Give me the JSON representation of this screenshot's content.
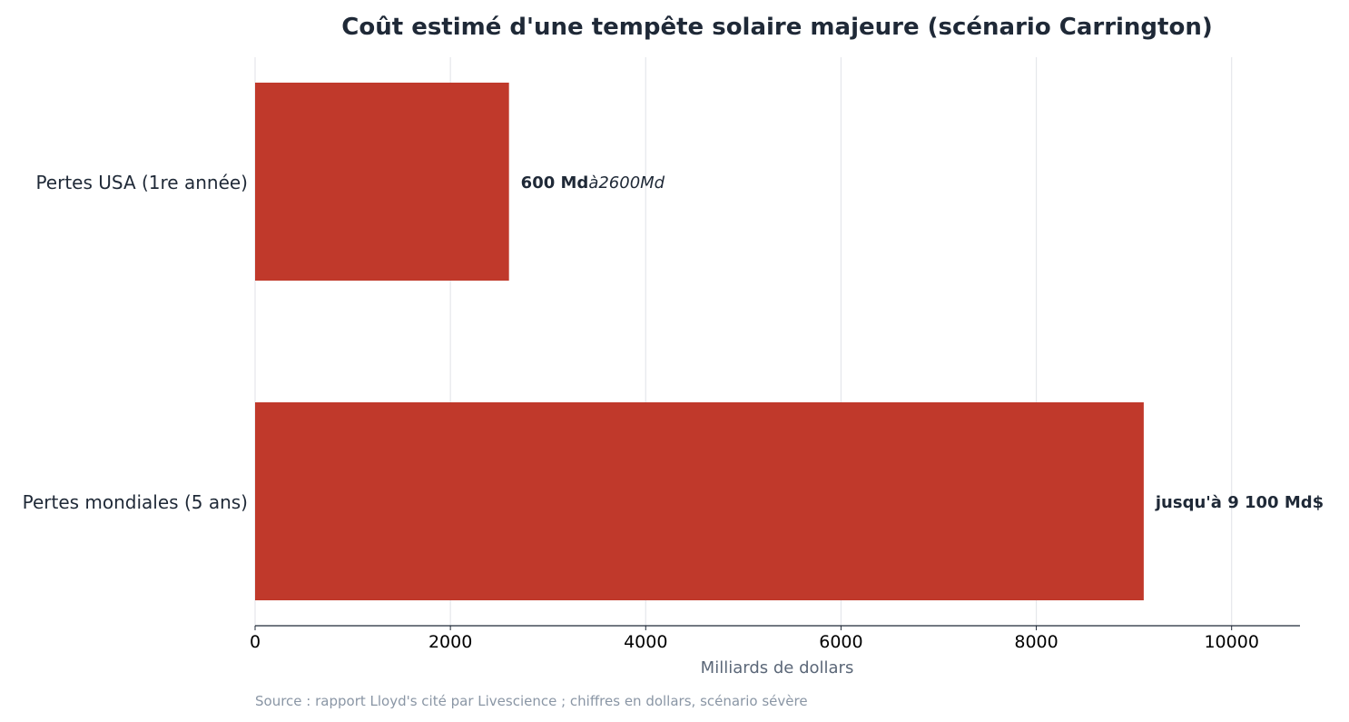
{
  "chart_data": {
    "type": "bar",
    "orientation": "horizontal",
    "title": "Coût estimé d'une tempête solaire majeure (scénario Carrington)",
    "xlabel": "Milliards de dollars",
    "ylabel": "",
    "categories": [
      "Pertes USA (1re année)",
      "Pertes mondiales (5 ans)"
    ],
    "values": [
      2600,
      9100
    ],
    "labels": [
      {
        "bold": "600 Md",
        "italic": "à2600Md"
      },
      {
        "bold": "jusqu'à 9 100 Md$",
        "italic": ""
      }
    ],
    "xlim": [
      0,
      10700
    ],
    "xticks": [
      0,
      2000,
      4000,
      6000,
      8000,
      10000
    ],
    "grid": true,
    "bar_color": "#c0392b"
  },
  "footer": {
    "source": "Source : rapport Lloyd's cité par Livescience ; chiffres en dollars, scénario sévère"
  }
}
